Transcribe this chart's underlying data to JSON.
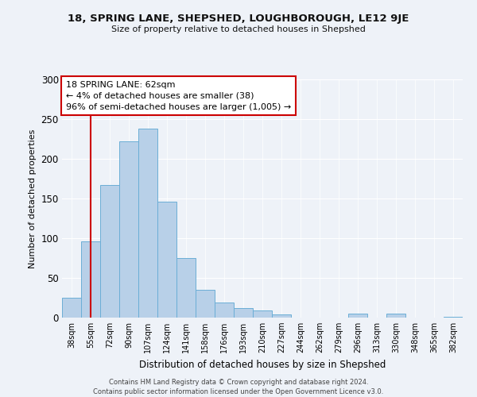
{
  "title": "18, SPRING LANE, SHEPSHED, LOUGHBOROUGH, LE12 9JE",
  "subtitle": "Size of property relative to detached houses in Shepshed",
  "xlabel": "Distribution of detached houses by size in Shepshed",
  "ylabel": "Number of detached properties",
  "bar_labels": [
    "38sqm",
    "55sqm",
    "72sqm",
    "90sqm",
    "107sqm",
    "124sqm",
    "141sqm",
    "158sqm",
    "176sqm",
    "193sqm",
    "210sqm",
    "227sqm",
    "244sqm",
    "262sqm",
    "279sqm",
    "296sqm",
    "313sqm",
    "330sqm",
    "348sqm",
    "365sqm",
    "382sqm"
  ],
  "bar_heights": [
    25,
    96,
    167,
    222,
    238,
    146,
    75,
    35,
    19,
    12,
    9,
    4,
    0,
    0,
    0,
    5,
    0,
    5,
    0,
    0,
    1
  ],
  "bar_color": "#b8d0e8",
  "bar_edge_color": "#6baed6",
  "ylim": [
    0,
    300
  ],
  "yticks": [
    0,
    50,
    100,
    150,
    200,
    250,
    300
  ],
  "vline_x": 1,
  "vline_color": "#cc0000",
  "annotation_title": "18 SPRING LANE: 62sqm",
  "annotation_line1": "← 4% of detached houses are smaller (38)",
  "annotation_line2": "96% of semi-detached houses are larger (1,005) →",
  "annotation_box_color": "#ffffff",
  "annotation_box_edge": "#cc0000",
  "footer_line1": "Contains HM Land Registry data © Crown copyright and database right 2024.",
  "footer_line2": "Contains public sector information licensed under the Open Government Licence v3.0.",
  "background_color": "#eef2f8"
}
